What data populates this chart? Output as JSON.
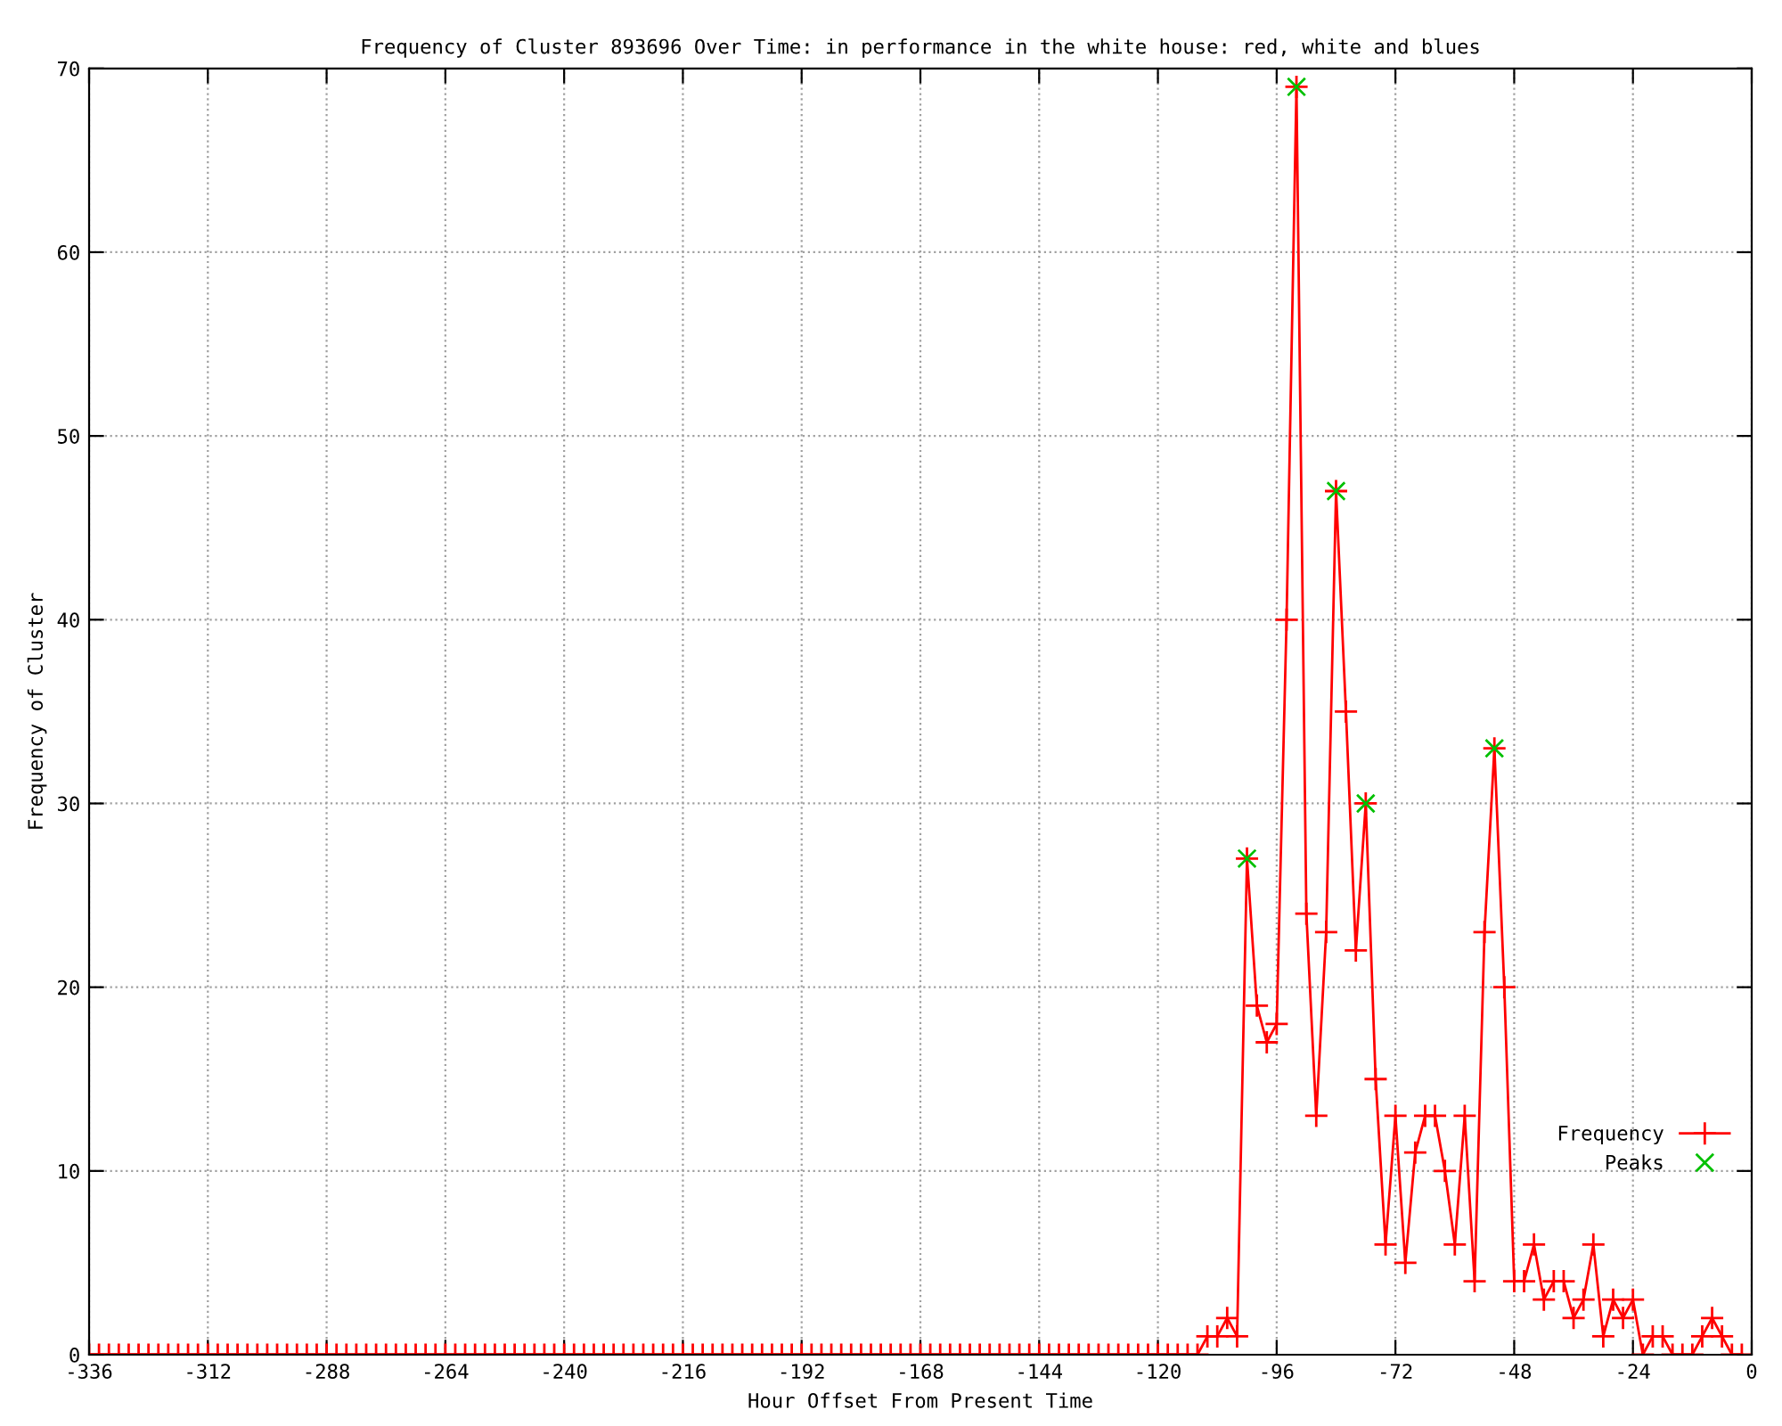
{
  "chart_data": {
    "type": "line",
    "title": "Frequency of Cluster 893696 Over Time: in performance in the white house: red, white and blues",
    "xlabel": "Hour Offset From Present Time",
    "ylabel": "Frequency of Cluster",
    "xlim": [
      -336,
      0
    ],
    "xticks": [
      -336,
      -312,
      -288,
      -264,
      -240,
      -216,
      -192,
      -168,
      -144,
      -120,
      -96,
      -72,
      -48,
      -24,
      0
    ],
    "ylim": [
      0,
      70
    ],
    "yticks": [
      0,
      10,
      20,
      30,
      40,
      50,
      60,
      70
    ],
    "grid": true,
    "legend": "bottom right",
    "series": [
      {
        "name": "Frequency",
        "color": "#ff0000",
        "marker": "cross",
        "x": [
          -336,
          -334,
          -332,
          -330,
          -328,
          -326,
          -324,
          -322,
          -320,
          -318,
          -316,
          -314,
          -312,
          -310,
          -308,
          -306,
          -304,
          -302,
          -300,
          -298,
          -296,
          -294,
          -292,
          -290,
          -288,
          -286,
          -284,
          -282,
          -280,
          -278,
          -276,
          -274,
          -272,
          -270,
          -268,
          -266,
          -264,
          -262,
          -260,
          -258,
          -256,
          -254,
          -252,
          -250,
          -248,
          -246,
          -244,
          -242,
          -240,
          -238,
          -236,
          -234,
          -232,
          -230,
          -228,
          -226,
          -224,
          -222,
          -220,
          -218,
          -216,
          -214,
          -212,
          -210,
          -208,
          -206,
          -204,
          -202,
          -200,
          -198,
          -196,
          -194,
          -192,
          -190,
          -188,
          -186,
          -184,
          -182,
          -180,
          -178,
          -176,
          -174,
          -172,
          -170,
          -168,
          -166,
          -164,
          -162,
          -160,
          -158,
          -156,
          -154,
          -152,
          -150,
          -148,
          -146,
          -144,
          -142,
          -140,
          -138,
          -136,
          -134,
          -132,
          -130,
          -128,
          -126,
          -124,
          -122,
          -120,
          -118,
          -116,
          -114,
          -112,
          -110,
          -108,
          -106,
          -104,
          -102,
          -100,
          -98,
          -96,
          -94,
          -92,
          -90,
          -88,
          -86,
          -84,
          -82,
          -80,
          -78,
          -76,
          -74,
          -72,
          -70,
          -68,
          -66,
          -64,
          -62,
          -60,
          -58,
          -56,
          -54,
          -52,
          -50,
          -48,
          -46,
          -44,
          -42,
          -40,
          -38,
          -36,
          -34,
          -32,
          -30,
          -28,
          -26,
          -24,
          -22,
          -20,
          -18,
          -16,
          -14,
          -12,
          -10,
          -8,
          -6,
          -4,
          -2
        ],
        "values": [
          0,
          0,
          0,
          0,
          0,
          0,
          0,
          0,
          0,
          0,
          0,
          0,
          0,
          0,
          0,
          0,
          0,
          0,
          0,
          0,
          0,
          0,
          0,
          0,
          0,
          0,
          0,
          0,
          0,
          0,
          0,
          0,
          0,
          0,
          0,
          0,
          0,
          0,
          0,
          0,
          0,
          0,
          0,
          0,
          0,
          0,
          0,
          0,
          0,
          0,
          0,
          0,
          0,
          0,
          0,
          0,
          0,
          0,
          0,
          0,
          0,
          0,
          0,
          0,
          0,
          0,
          0,
          0,
          0,
          0,
          0,
          0,
          0,
          0,
          0,
          0,
          0,
          0,
          0,
          0,
          0,
          0,
          0,
          0,
          0,
          0,
          0,
          0,
          0,
          0,
          0,
          0,
          0,
          0,
          0,
          0,
          0,
          0,
          0,
          0,
          0,
          0,
          0,
          0,
          0,
          0,
          0,
          0,
          0,
          0,
          0,
          0,
          0,
          1,
          1,
          2,
          1,
          27,
          19,
          17,
          18,
          40,
          69,
          24,
          13,
          23,
          47,
          35,
          22,
          30,
          15,
          6,
          13,
          5,
          11,
          13,
          13,
          10,
          6,
          13,
          4,
          23,
          33,
          20,
          4,
          4,
          6,
          3,
          4,
          4,
          2,
          3,
          6,
          1,
          3,
          2,
          3,
          0,
          1,
          1,
          0,
          0,
          0,
          1,
          2,
          1,
          0,
          0
        ]
      },
      {
        "name": "Peaks",
        "type": "scatter",
        "color": "#00c000",
        "marker": "cross",
        "x": [
          -102,
          -92,
          -84,
          -78,
          -52
        ],
        "values": [
          27,
          69,
          47,
          30,
          33
        ]
      }
    ]
  }
}
